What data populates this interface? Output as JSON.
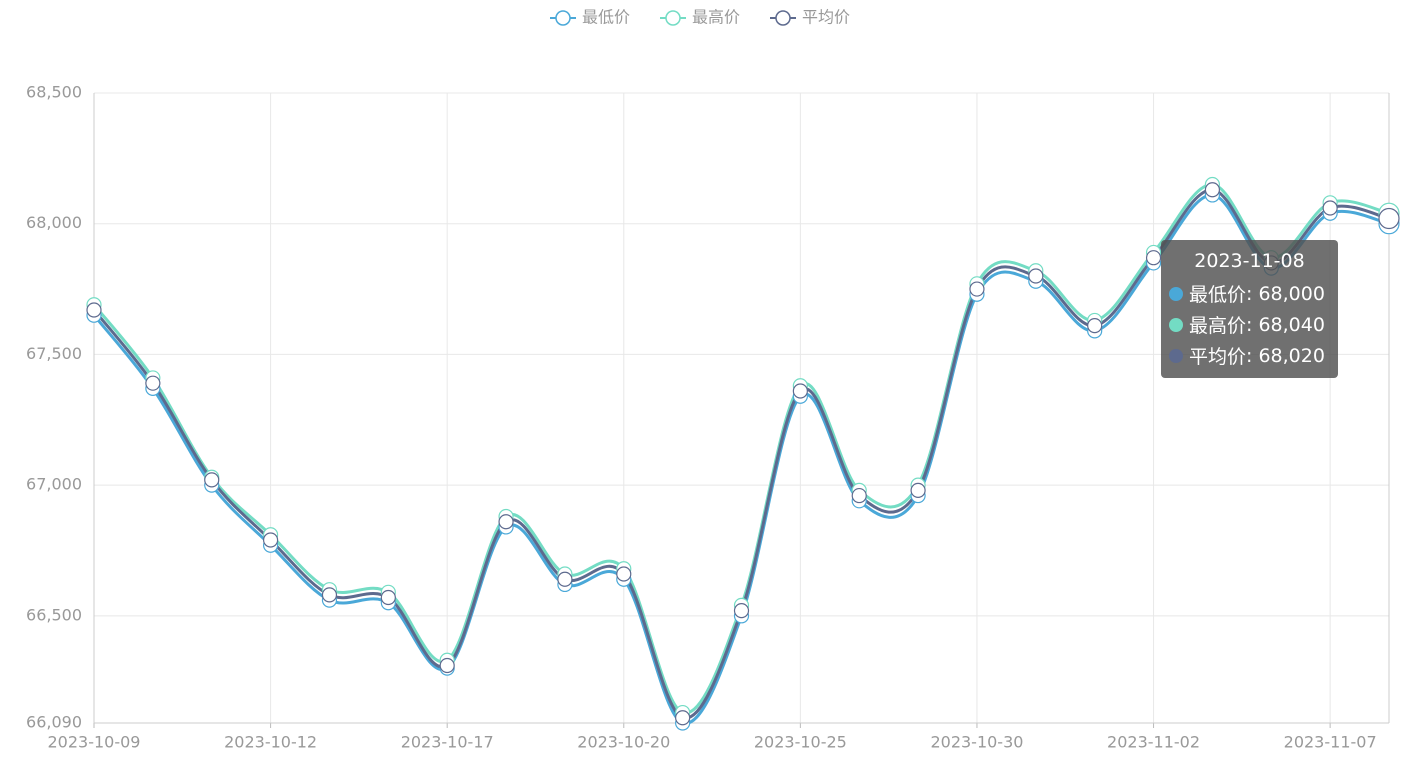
{
  "chart_data": {
    "type": "line",
    "categories": [
      "2023-10-09",
      null,
      null,
      "2023-10-12",
      null,
      null,
      "2023-10-17",
      null,
      null,
      "2023-10-20",
      null,
      null,
      "2023-10-25",
      null,
      null,
      "2023-10-30",
      null,
      null,
      "2023-11-02",
      null,
      null,
      "2023-11-07",
      "2023-11-08"
    ],
    "series": [
      {
        "name": "最低价",
        "color": "#4aa8d8",
        "values": [
          67650,
          67370,
          67000,
          66770,
          66560,
          66550,
          66300,
          66840,
          66620,
          66640,
          66090,
          66500,
          67340,
          66940,
          66960,
          67730,
          67780,
          67590,
          67850,
          68110,
          67830,
          68040,
          68000
        ]
      },
      {
        "name": "最高价",
        "color": "#73dcc4",
        "values": [
          67690,
          67410,
          67030,
          66810,
          66600,
          66590,
          66330,
          66880,
          66660,
          66680,
          66130,
          66540,
          67380,
          66980,
          67000,
          67770,
          67820,
          67630,
          67890,
          68150,
          67870,
          68080,
          68040
        ]
      },
      {
        "name": "平均价",
        "color": "#5d6a8e",
        "values": [
          67670,
          67390,
          67020,
          66790,
          66580,
          66570,
          66310,
          66860,
          66640,
          66660,
          66110,
          66520,
          67360,
          66960,
          66980,
          67750,
          67800,
          67610,
          67870,
          68130,
          67850,
          68060,
          68020
        ]
      }
    ],
    "ylim": [
      66090,
      68500
    ],
    "yticks": [
      {
        "value": 66090,
        "label": "66,090"
      },
      {
        "value": 66500,
        "label": "66,500"
      },
      {
        "value": 67000,
        "label": "67,000"
      },
      {
        "value": 67500,
        "label": "67,500"
      },
      {
        "value": 68000,
        "label": "68,000"
      },
      {
        "value": 68500,
        "label": "68,500"
      }
    ],
    "grid": true,
    "smooth": true,
    "tooltip": {
      "value_labels": [
        "68,000",
        "68,040",
        "68,020"
      ]
    }
  }
}
